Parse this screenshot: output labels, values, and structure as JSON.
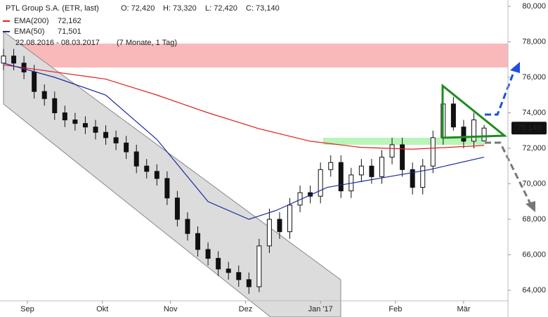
{
  "chart_data": {
    "type": "candlestick",
    "header": {
      "name": "PTL Group S.A. (ETR, last)",
      "open": "O: 72,420",
      "high": "H: 73,320",
      "low": "L: 72,420",
      "close": "C: 73,140"
    },
    "date_range": "22.08.2016 - 08.03.2017",
    "period": "(7 Monate, 1 Tag)",
    "x": [
      0,
      3,
      6,
      9,
      12,
      15,
      18,
      21,
      24,
      27,
      30,
      33,
      36,
      39,
      42,
      45,
      48,
      51,
      54,
      57,
      60,
      63,
      66,
      69,
      72,
      75,
      78,
      81,
      84,
      87,
      90,
      93,
      96,
      99,
      102,
      105,
      108,
      111,
      114,
      117,
      120,
      123,
      126,
      129,
      132,
      135,
      138,
      141
    ],
    "open": [
      76800,
      77200,
      76800,
      76300,
      75200,
      74800,
      74000,
      73600,
      73400,
      73200,
      72900,
      72600,
      72300,
      71800,
      71000,
      70700,
      70300,
      69200,
      68000,
      67200,
      66300,
      65800,
      65200,
      65000,
      64600,
      64200,
      66500,
      68000,
      67300,
      68800,
      69500,
      69300,
      70800,
      71200,
      69600,
      70500,
      71000,
      70400,
      71500,
      72200,
      70800,
      69800,
      71000,
      72600,
      74500,
      73200,
      72400,
      72420
    ],
    "high": [
      77600,
      77600,
      77200,
      76700,
      75600,
      75200,
      74400,
      74000,
      73800,
      73600,
      73300,
      73000,
      72700,
      72200,
      71400,
      71100,
      70700,
      69600,
      68400,
      67600,
      66700,
      66200,
      65600,
      65400,
      65000,
      66900,
      68600,
      68400,
      69200,
      69900,
      69900,
      71200,
      71600,
      71600,
      70900,
      71400,
      71400,
      71900,
      72600,
      72600,
      71200,
      71400,
      73000,
      75200,
      74900,
      73600,
      74000,
      73320
    ],
    "low": [
      76400,
      76400,
      75900,
      74800,
      74400,
      73600,
      73200,
      73000,
      72800,
      72500,
      72200,
      71900,
      71400,
      70600,
      70300,
      69900,
      68800,
      67600,
      66800,
      65900,
      65400,
      64800,
      64600,
      64200,
      63800,
      63900,
      66100,
      66900,
      66900,
      68400,
      68900,
      68900,
      70400,
      69200,
      69200,
      70100,
      70000,
      70000,
      71100,
      70400,
      69400,
      69400,
      70600,
      72200,
      73000,
      72000,
      72000,
      72420
    ],
    "close": [
      77200,
      76800,
      76300,
      75200,
      74800,
      74000,
      73600,
      73400,
      73200,
      72900,
      72600,
      72300,
      71800,
      71000,
      70700,
      70300,
      69200,
      68000,
      67200,
      66300,
      65800,
      65200,
      65000,
      64600,
      64200,
      66500,
      68000,
      67300,
      68800,
      69500,
      69300,
      70800,
      71200,
      69600,
      70500,
      71000,
      70400,
      71500,
      72200,
      70800,
      69800,
      71000,
      72600,
      74500,
      73200,
      72400,
      73600,
      73140
    ],
    "series": [
      {
        "name": "EMA(200)",
        "color": "#e02020",
        "last_label": "72,162",
        "x": [
          0,
          15,
          30,
          45,
          60,
          75,
          90,
          105,
          120,
          135,
          141
        ],
        "values": [
          76700,
          76300,
          75900,
          75000,
          74000,
          73100,
          72400,
          72050,
          71950,
          72100,
          72162
        ]
      },
      {
        "name": "EMA(50)",
        "color": "#1a2a9e",
        "last_label": "71,501",
        "x": [
          0,
          15,
          30,
          45,
          60,
          72,
          80,
          95,
          110,
          125,
          141
        ],
        "values": [
          76800,
          76000,
          75000,
          72500,
          69000,
          68000,
          68500,
          69800,
          70300,
          70800,
          71501
        ]
      }
    ],
    "last_price": {
      "value": 73140,
      "label": "73,140"
    },
    "xlim": [
      0,
      148
    ],
    "ylim": [
      63500,
      80000
    ],
    "xticks": [
      {
        "value": 7,
        "label": "Sep"
      },
      {
        "value": 29,
        "label": "Okt"
      },
      {
        "value": 49,
        "label": "Nov"
      },
      {
        "value": 71,
        "label": "Dez"
      },
      {
        "value": 93,
        "label": "Jan '17"
      },
      {
        "value": 115,
        "label": "Feb"
      },
      {
        "value": 135,
        "label": "Mär"
      }
    ],
    "yticks": [
      {
        "value": 64000,
        "label": "64,000"
      },
      {
        "value": 66000,
        "label": "66,000"
      },
      {
        "value": 68000,
        "label": "68,000"
      },
      {
        "value": 70000,
        "label": "70,000"
      },
      {
        "value": 72000,
        "label": "72,000"
      },
      {
        "value": 74000,
        "label": "74,000"
      },
      {
        "value": 76000,
        "label": "76,000"
      },
      {
        "value": 78000,
        "label": "78,000"
      },
      {
        "value": 80000,
        "label": "80,000"
      }
    ]
  }
}
